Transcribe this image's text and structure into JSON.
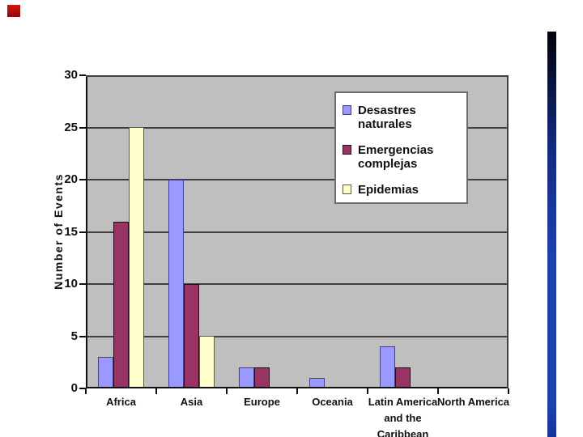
{
  "slide": {
    "background": "#ffffff",
    "decorations": {
      "red_square": {
        "color_top": "#d41414",
        "color_bottom": "#8a0a0a"
      },
      "blue_bar": {
        "color_top": "#020208",
        "color_mid": "#12297f",
        "color_main": "#1e3fae",
        "color_bottom": "#16339b"
      }
    }
  },
  "chart_data": {
    "type": "bar",
    "title": "",
    "xlabel": "",
    "ylabel": "Number of Events",
    "ylim": [
      0,
      30
    ],
    "ytick_step": 5,
    "grid": true,
    "legend_position": "upper-right-inside",
    "plot_bg": "#bfbfbf",
    "gridline_color": "#3f3f3f",
    "axis_color": "#111111",
    "categories": [
      "Africa",
      "Asia",
      "Europe",
      "Oceania",
      "Latin America and the Caribbean",
      "North America"
    ],
    "category_label_lines": [
      [
        "Africa"
      ],
      [
        "Asia"
      ],
      [
        "Europe"
      ],
      [
        "Oceania"
      ],
      [
        "Latin America",
        "and the",
        "Caribbean"
      ],
      [
        "North America"
      ]
    ],
    "series": [
      {
        "name": "Desastres naturales",
        "color": "#9999ff",
        "border": "#3f3f9a",
        "values": [
          3,
          20,
          2,
          1,
          4,
          0
        ]
      },
      {
        "name": "Emergencias complejas",
        "color": "#993366",
        "border": "#2a0a18",
        "values": [
          16,
          10,
          2,
          0,
          2,
          0
        ]
      },
      {
        "name": "Epidemias",
        "color": "#ffffcc",
        "border": "#5f5f35",
        "values": [
          25,
          5,
          0,
          0,
          0,
          0
        ]
      }
    ]
  }
}
